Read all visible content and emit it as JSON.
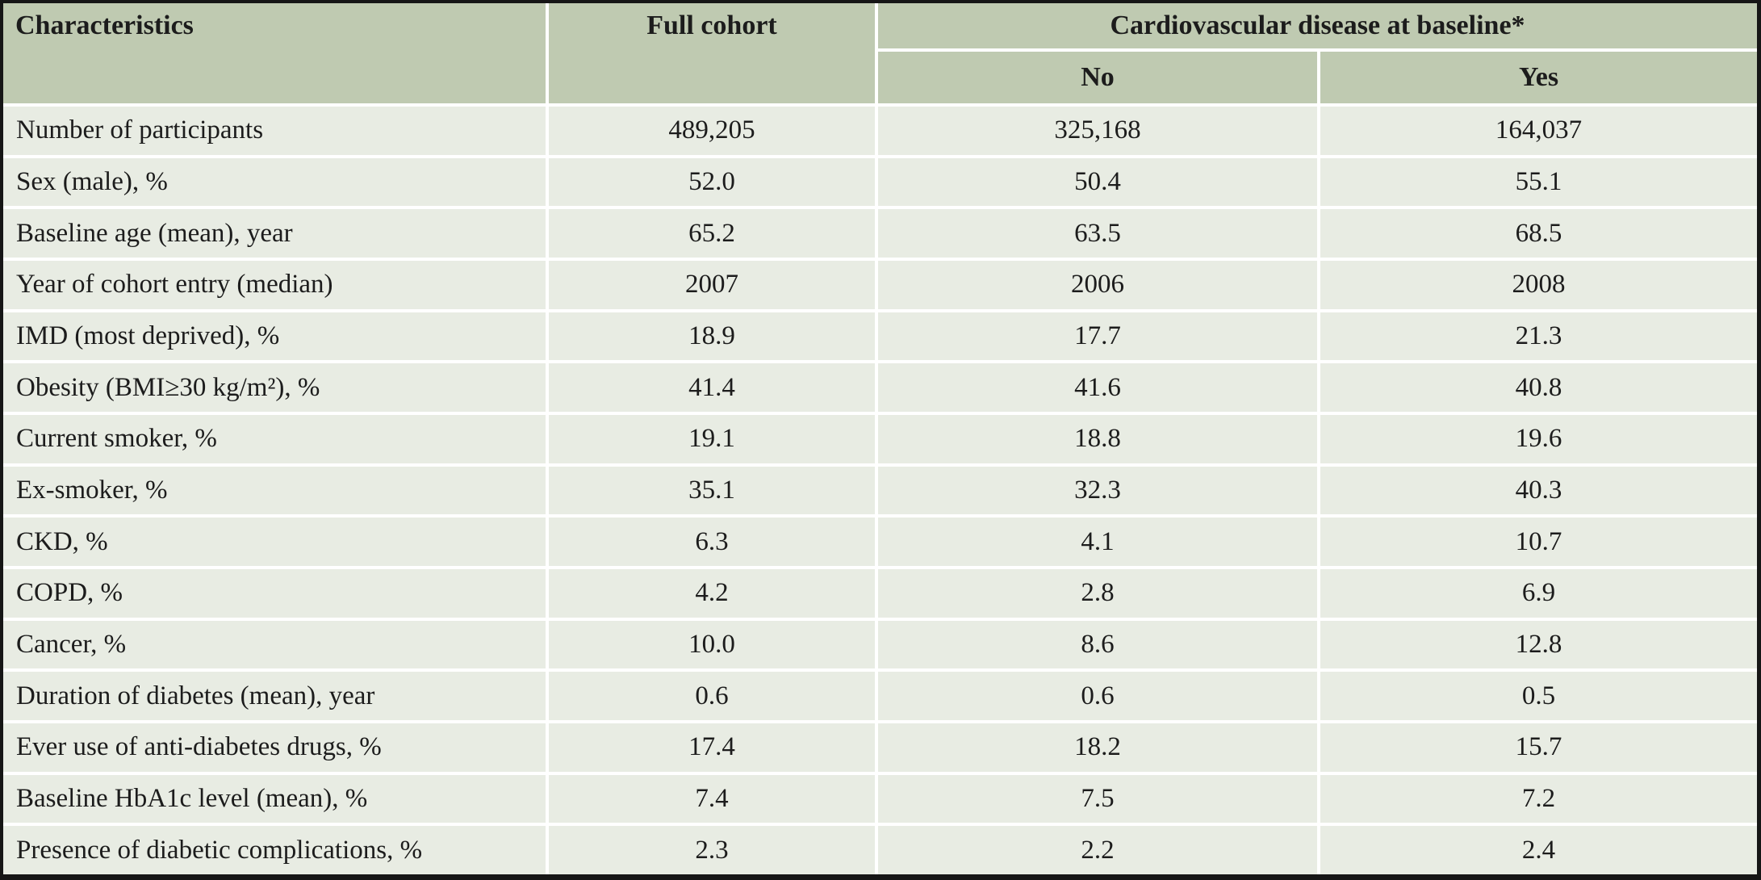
{
  "colors": {
    "header_bg": "#bfcab1",
    "row_bg": "#e8ece3",
    "grid_line": "#ffffff",
    "border": "#161616",
    "text": "#1c1c1c"
  },
  "chart_data": {
    "type": "table",
    "columns": {
      "characteristics": "Characteristics",
      "full_cohort": "Full cohort",
      "cvd_group": "Cardiovascular disease at baseline*",
      "cvd_no": "No",
      "cvd_yes": "Yes"
    },
    "rows": [
      {
        "label": "Number of participants",
        "full_cohort": "489,205",
        "no": "325,168",
        "yes": "164,037"
      },
      {
        "label": "Sex (male), %",
        "full_cohort": "52.0",
        "no": "50.4",
        "yes": "55.1"
      },
      {
        "label": "Baseline age (mean), year",
        "full_cohort": "65.2",
        "no": "63.5",
        "yes": "68.5"
      },
      {
        "label": "Year of cohort entry (median)",
        "full_cohort": "2007",
        "no": "2006",
        "yes": "2008"
      },
      {
        "label": "IMD (most deprived), %",
        "full_cohort": "18.9",
        "no": "17.7",
        "yes": "21.3"
      },
      {
        "label": "Obesity (BMI≥30 kg/m²), %",
        "full_cohort": "41.4",
        "no": "41.6",
        "yes": "40.8"
      },
      {
        "label": "Current smoker, %",
        "full_cohort": "19.1",
        "no": "18.8",
        "yes": "19.6"
      },
      {
        "label": "Ex-smoker, %",
        "full_cohort": "35.1",
        "no": "32.3",
        "yes": "40.3"
      },
      {
        "label": "CKD, %",
        "full_cohort": "6.3",
        "no": "4.1",
        "yes": "10.7"
      },
      {
        "label": "COPD, %",
        "full_cohort": "4.2",
        "no": "2.8",
        "yes": "6.9"
      },
      {
        "label": "Cancer, %",
        "full_cohort": "10.0",
        "no": "8.6",
        "yes": "12.8"
      },
      {
        "label": "Duration of diabetes (mean), year",
        "full_cohort": "0.6",
        "no": "0.6",
        "yes": "0.5"
      },
      {
        "label": "Ever use of anti-diabetes drugs, %",
        "full_cohort": "17.4",
        "no": "18.2",
        "yes": "15.7"
      },
      {
        "label": "Baseline HbA1c level (mean), %",
        "full_cohort": "7.4",
        "no": "7.5",
        "yes": "7.2"
      },
      {
        "label": "Presence of diabetic complications, %",
        "full_cohort": "2.3",
        "no": "2.2",
        "yes": "2.4"
      }
    ]
  }
}
